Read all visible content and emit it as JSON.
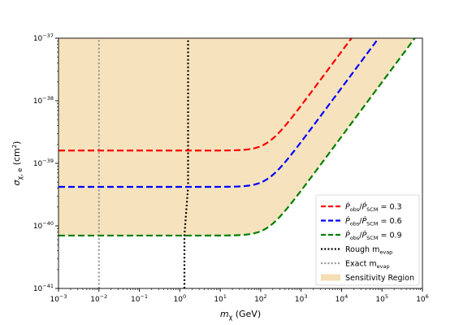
{
  "chart_data": {
    "type": "line",
    "x_scale": "log",
    "y_scale": "log",
    "xlim": [
      0.001,
      1000000
    ],
    "ylim": [
      1e-41,
      1e-37
    ],
    "xlabel": "m_χ (GeV)",
    "ylabel": "σ_χ,e (cm²)",
    "x_tick_labels": [
      {
        "value": 0.001,
        "base": "10",
        "exp": "−3"
      },
      {
        "value": 0.01,
        "base": "10",
        "exp": "−2"
      },
      {
        "value": 0.1,
        "base": "10",
        "exp": "−1"
      },
      {
        "value": 1,
        "base": "10",
        "exp": "0"
      },
      {
        "value": 10,
        "base": "10",
        "exp": "1"
      },
      {
        "value": 100,
        "base": "10",
        "exp": "2"
      },
      {
        "value": 1000,
        "base": "10",
        "exp": "3"
      },
      {
        "value": 10000,
        "base": "10",
        "exp": "4"
      },
      {
        "value": 100000,
        "base": "10",
        "exp": "5"
      },
      {
        "value": 1000000,
        "base": "10",
        "exp": "6"
      }
    ],
    "y_tick_labels": [
      {
        "value": 1e-41,
        "base": "10",
        "exp": "−41"
      },
      {
        "value": 1e-40,
        "base": "10",
        "exp": "−40"
      },
      {
        "value": 1e-39,
        "base": "10",
        "exp": "−39"
      },
      {
        "value": 1e-38,
        "base": "10",
        "exp": "−38"
      },
      {
        "value": 1e-37,
        "base": "10",
        "exp": "−37"
      }
    ],
    "grid": false,
    "legend_position": "lower-right",
    "series": [
      {
        "name": "Ṗ_obs/Ṗ_SCM = 0.3",
        "label_parts": {
          "main": "P",
          "sub1": "obs",
          "sep": "/",
          "sub2": "SCM",
          "value": " = 0.3"
        },
        "color": "#ff0000",
        "style": "dashed",
        "plateau": 1.6e-39,
        "knee": 150,
        "x": [
          0.001,
          1,
          10,
          100,
          150,
          200,
          300,
          1000,
          10000,
          30000
        ],
        "y": [
          1.6e-39,
          1.6e-39,
          1.6e-39,
          1.6e-39,
          1.62e-39,
          1.75e-39,
          2.3e-39,
          7e-39,
          5e-38,
          1e-37
        ]
      },
      {
        "name": "Ṗ_obs/Ṗ_SCM = 0.6",
        "label_parts": {
          "main": "P",
          "sub1": "obs",
          "sep": "/",
          "sub2": "SCM",
          "value": " = 0.6"
        },
        "color": "#0000ff",
        "style": "dashed",
        "plateau": 4.2e-40,
        "knee": 150,
        "x": [
          0.001,
          1,
          10,
          100,
          150,
          200,
          300,
          1000,
          10000,
          100000,
          130000
        ],
        "y": [
          4.2e-40,
          4.2e-40,
          4.2e-40,
          4.2e-40,
          4.25e-40,
          4.6e-40,
          6e-40,
          1.8e-39,
          1.3e-38,
          9e-38,
          1e-37
        ]
      },
      {
        "name": "Ṗ_obs/Ṗ_SCM = 0.9",
        "label_parts": {
          "main": "P",
          "sub1": "obs",
          "sep": "/",
          "sub2": "SCM",
          "value": " = 0.9"
        },
        "color": "#008000",
        "style": "dashed",
        "plateau": 7e-41,
        "knee": 150,
        "x": [
          0.001,
          1,
          10,
          100,
          150,
          200,
          300,
          1000,
          10000,
          100000,
          700000
        ],
        "y": [
          7e-41,
          7e-41,
          7e-41,
          7e-41,
          7.1e-41,
          7.7e-41,
          1e-40,
          3e-40,
          2.2e-39,
          1.6e-38,
          1e-37
        ]
      },
      {
        "name": "Rough m_evap",
        "label_parts": {
          "main": "Rough m",
          "sub1": "evap"
        },
        "color": "#000000",
        "style": "dotted",
        "x": [
          1.3,
          1.3,
          1.6,
          1.6
        ],
        "y": [
          1e-41,
          7e-41,
          4.2e-40,
          1e-37
        ]
      },
      {
        "name": "Exact m_evap",
        "label_parts": {
          "main": "Exact m",
          "sub1": "evap"
        },
        "color": "#999999",
        "style": "dotted",
        "x": [
          0.01,
          0.01
        ],
        "y": [
          1e-41,
          1e-37
        ]
      }
    ],
    "region": {
      "name": "Sensitivity Region",
      "color": "#f5deb3",
      "description_bound": "above green 0.9 curve"
    }
  }
}
